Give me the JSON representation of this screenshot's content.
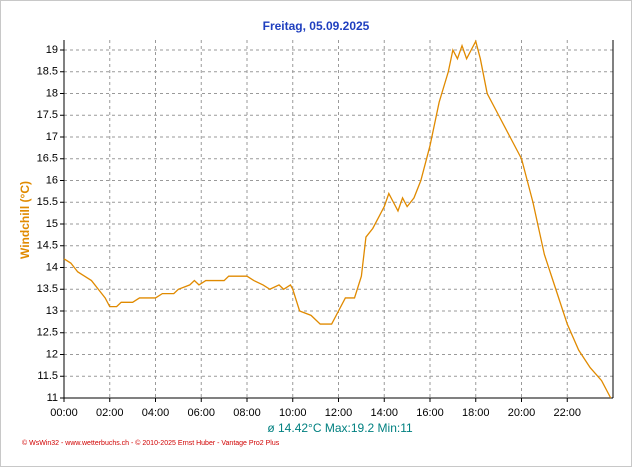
{
  "chart_data": {
    "type": "line",
    "title": "Freitag, 05.09.2025",
    "y_label": "Windchill (°C)",
    "summary": "ø 14.42°C  Max:19.2  Min:11",
    "footer": "© WsWin32 - www.wetterbuchs.ch - © 2010-2025 Ernst Huber - Vantage Pro2 Plus",
    "grid": true,
    "xlim": [
      0,
      24
    ],
    "ylim": [
      11,
      19.23
    ],
    "xticks": [
      {
        "value": 0,
        "label": "00:00"
      },
      {
        "value": 2,
        "label": "02:00"
      },
      {
        "value": 4,
        "label": "04:00"
      },
      {
        "value": 6,
        "label": "06:00"
      },
      {
        "value": 8,
        "label": "08:00"
      },
      {
        "value": 10,
        "label": "10:00"
      },
      {
        "value": 12,
        "label": "12:00"
      },
      {
        "value": 14,
        "label": "14:00"
      },
      {
        "value": 16,
        "label": "16:00"
      },
      {
        "value": 18,
        "label": "18:00"
      },
      {
        "value": 20,
        "label": "20:00"
      },
      {
        "value": 22,
        "label": "22:00"
      }
    ],
    "yticks": [
      11,
      11.5,
      12,
      12.5,
      13,
      13.5,
      14,
      14.5,
      15,
      15.5,
      16,
      16.5,
      17,
      17.5,
      18,
      18.5,
      19
    ],
    "series": [
      {
        "color": "#e08a00",
        "x": [
          0,
          0.3,
          0.6,
          0.9,
          1.2,
          1.5,
          1.8,
          2.0,
          2.3,
          2.5,
          3,
          3.3,
          4,
          4.3,
          4.8,
          5,
          5.5,
          5.7,
          5.9,
          6.2,
          7,
          7.2,
          8,
          8.3,
          8.7,
          9,
          9.4,
          9.6,
          9.9,
          10,
          10.3,
          10.8,
          11.2,
          11.7,
          12.0,
          12.3,
          12.7,
          13,
          13.2,
          13.5,
          13.8,
          14,
          14.2,
          14.4,
          14.6,
          14.8,
          15,
          15.3,
          15.6,
          16,
          16.4,
          16.8,
          17,
          17.2,
          17.4,
          17.6,
          17.8,
          18,
          18.2,
          18.5,
          19,
          19.5,
          20,
          20.5,
          21,
          21.5,
          22,
          22.5,
          23,
          23.5,
          23.9
        ],
        "values": [
          14.2,
          14.1,
          13.9,
          13.8,
          13.7,
          13.5,
          13.3,
          13.1,
          13.1,
          13.2,
          13.2,
          13.3,
          13.3,
          13.4,
          13.4,
          13.5,
          13.6,
          13.7,
          13.6,
          13.7,
          13.7,
          13.8,
          13.8,
          13.7,
          13.6,
          13.5,
          13.6,
          13.5,
          13.6,
          13.5,
          13.0,
          12.9,
          12.7,
          12.7,
          13.0,
          13.3,
          13.3,
          13.8,
          14.7,
          14.9,
          15.2,
          15.4,
          15.7,
          15.5,
          15.3,
          15.6,
          15.4,
          15.6,
          16.0,
          16.8,
          17.8,
          18.5,
          19.0,
          18.8,
          19.1,
          18.8,
          19.0,
          19.2,
          18.8,
          18.0,
          17.5,
          17.0,
          16.5,
          15.5,
          14.3,
          13.5,
          12.7,
          12.1,
          11.7,
          11.4,
          11.0
        ]
      }
    ]
  }
}
